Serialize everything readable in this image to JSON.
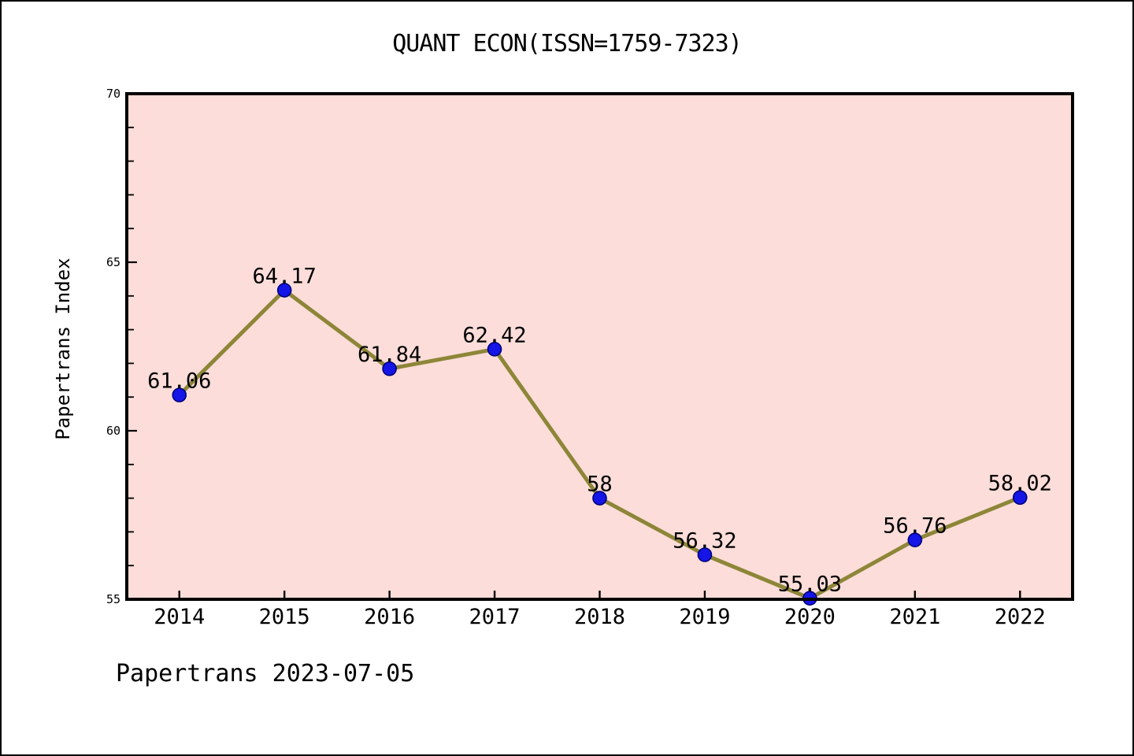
{
  "page": {
    "background": "#ffffff",
    "border_color": "#000000"
  },
  "chart_data": {
    "type": "line",
    "title": "QUANT ECON(ISSN=1759-7323)",
    "xlabel": "",
    "ylabel": "Papertrans Index",
    "footer": "Papertrans 2023-07-05",
    "x": [
      2014,
      2015,
      2016,
      2017,
      2018,
      2019,
      2020,
      2021,
      2022
    ],
    "series": [
      {
        "name": "Papertrans Index",
        "values": [
          61.06,
          64.17,
          61.84,
          62.42,
          58,
          56.32,
          55.03,
          56.76,
          58.02
        ]
      }
    ],
    "point_labels": [
      "61.06",
      "64.17",
      "61.84",
      "62.42",
      "58",
      "56.32",
      "55.03",
      "56.76",
      "58.02"
    ],
    "xticks": [
      "2014",
      "2015",
      "2016",
      "2017",
      "2018",
      "2019",
      "2020",
      "2021",
      "2022"
    ],
    "yticks": [
      55,
      60,
      65,
      70
    ],
    "y_minor_tick_step": 1,
    "xlim": [
      2013.5,
      2022.5
    ],
    "ylim": [
      55,
      70
    ],
    "grid": false,
    "legend": "none",
    "colors": {
      "plot_background": "#fcddd9",
      "line": "#8d8638",
      "marker_fill": "#1515e8",
      "marker_edge": "#00007a",
      "frame": "#000000",
      "text": "#000000"
    }
  }
}
